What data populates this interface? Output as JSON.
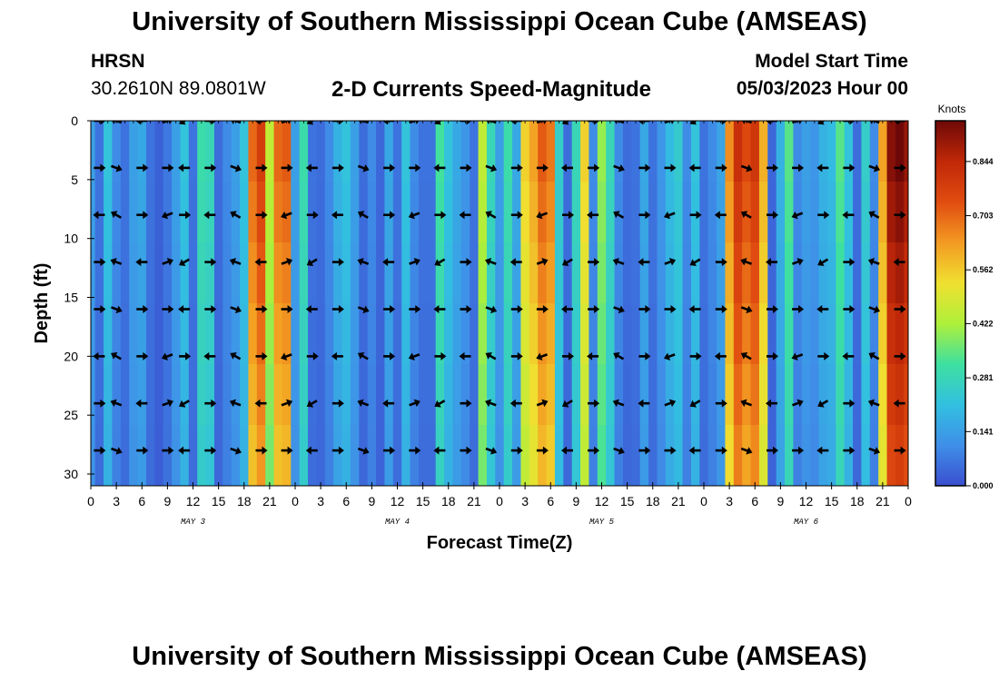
{
  "header": {
    "title": "University of Southern Mississippi Ocean Cube (AMSEAS)",
    "station": "HRSN",
    "coords": "30.2610N  89.0801W",
    "subtitle": "2-D Currents Speed-Magnitude",
    "model_start_label": "Model Start Time",
    "model_start_value": "05/03/2023 Hour 00"
  },
  "footer": {
    "title": "University of Southern Mississippi Ocean Cube (AMSEAS)"
  },
  "colors": {
    "scale": [
      "#3a4fd0",
      "#3f8fe8",
      "#32c0e0",
      "#3ee0a0",
      "#aef03a",
      "#f0e030",
      "#f39a22",
      "#e04c10",
      "#c02808",
      "#6e0808"
    ]
  },
  "chart_data": {
    "type": "heatmap",
    "title": "2-D Currents Speed-Magnitude",
    "xlabel": "Forecast Time(Z)",
    "ylabel": "Depth (ft)",
    "x_tick_labels": [
      "0",
      "3",
      "6",
      "9",
      "12",
      "15",
      "18",
      "21",
      "0",
      "3",
      "6",
      "9",
      "12",
      "15",
      "18",
      "21",
      "0",
      "3",
      "6",
      "9",
      "12",
      "15",
      "18",
      "21",
      "0",
      "3",
      "6",
      "9",
      "12",
      "15",
      "18",
      "21",
      "0"
    ],
    "x_range_hours": [
      0,
      96
    ],
    "day_labels": [
      "MAY 3",
      "MAY 4",
      "MAY 5",
      "MAY 6"
    ],
    "y_ticks": [
      0,
      5,
      10,
      15,
      20,
      25,
      30
    ],
    "y_range": [
      0,
      31
    ],
    "colorbar": {
      "unit": "Knots",
      "labels": [
        "0.844",
        "0.703",
        "0.562",
        "0.422",
        "0.281",
        "0.141",
        "0.000"
      ],
      "range": [
        0,
        0.95
      ]
    },
    "speed_knots_by_hour": [
      0.14,
      0.06,
      0.22,
      0.1,
      0.06,
      0.14,
      0.16,
      0.06,
      0.03,
      0.07,
      0.14,
      0.22,
      0.06,
      0.3,
      0.28,
      0.05,
      0.1,
      0.14,
      0.22,
      0.7,
      0.78,
      0.45,
      0.7,
      0.72,
      0.14,
      0.3,
      0.06,
      0.05,
      0.1,
      0.18,
      0.22,
      0.14,
      0.05,
      0.1,
      0.04,
      0.16,
      0.06,
      0.22,
      0.1,
      0.06,
      0.06,
      0.32,
      0.22,
      0.16,
      0.12,
      0.06,
      0.45,
      0.28,
      0.14,
      0.3,
      0.16,
      0.55,
      0.62,
      0.72,
      0.68,
      0.25,
      0.05,
      0.28,
      0.55,
      0.1,
      0.4,
      0.28,
      0.1,
      0.05,
      0.06,
      0.16,
      0.06,
      0.12,
      0.2,
      0.24,
      0.1,
      0.22,
      0.06,
      0.1,
      0.15,
      0.65,
      0.82,
      0.75,
      0.8,
      0.6,
      0.04,
      0.18,
      0.34,
      0.1,
      0.14,
      0.12,
      0.18,
      0.2,
      0.34,
      0.22,
      0.05,
      0.25,
      0.1,
      0.62,
      0.92,
      0.95,
      0.9
    ],
    "arrow_depths_ft": [
      0,
      4,
      8,
      12,
      16,
      20,
      24,
      28
    ],
    "arrow_hours": [
      1,
      3,
      6,
      9,
      11,
      14,
      17,
      20,
      23,
      26,
      29,
      32,
      35,
      38,
      41,
      44,
      47,
      50,
      53,
      56,
      59,
      62,
      65,
      68,
      71,
      74,
      77,
      80,
      83,
      86,
      89,
      92,
      95
    ]
  }
}
